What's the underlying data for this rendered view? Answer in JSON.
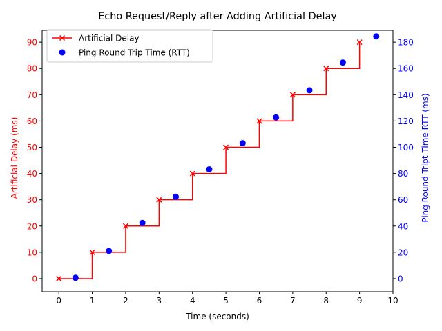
{
  "chart_data": {
    "type": "line",
    "title": "Echo Request/Reply after Adding Artificial Delay",
    "xlabel": "Time (seconds)",
    "ylabel_left": "Artificial Delay (ms)",
    "ylabel_right": "Ping Round Tript Time RTT (ms)",
    "xlim": [
      -0.5,
      10
    ],
    "ylim_left": [
      -5,
      94.5
    ],
    "ylim_right": [
      -10,
      189
    ],
    "x_ticks": [
      0,
      1,
      2,
      3,
      4,
      5,
      6,
      7,
      8,
      9,
      10
    ],
    "y_left_ticks": [
      0,
      10,
      20,
      30,
      40,
      50,
      60,
      70,
      80,
      90
    ],
    "y_right_ticks": [
      0,
      20,
      40,
      60,
      80,
      100,
      120,
      140,
      160,
      180
    ],
    "legend_position": "top-left",
    "grid": false,
    "series": [
      {
        "name": "Artificial Delay",
        "axis": "left",
        "style": "step-post",
        "marker": "x",
        "color": "#ff0000",
        "x": [
          0,
          1,
          2,
          3,
          4,
          5,
          6,
          7,
          8,
          9
        ],
        "y": [
          0,
          10,
          20,
          30,
          40,
          50,
          60,
          70,
          80,
          90
        ]
      },
      {
        "name": "Ping Round Trip Time (RTT)",
        "axis": "right",
        "style": "scatter",
        "marker": "o",
        "color": "#0000ff",
        "x": [
          0.5,
          1.5,
          2.5,
          3.5,
          4.5,
          5.5,
          6.5,
          7.5,
          8.5,
          9.5
        ],
        "y": [
          0.6,
          21,
          42.4,
          62.3,
          83.2,
          103.1,
          122.7,
          143.4,
          164.5,
          184.4
        ]
      }
    ]
  }
}
